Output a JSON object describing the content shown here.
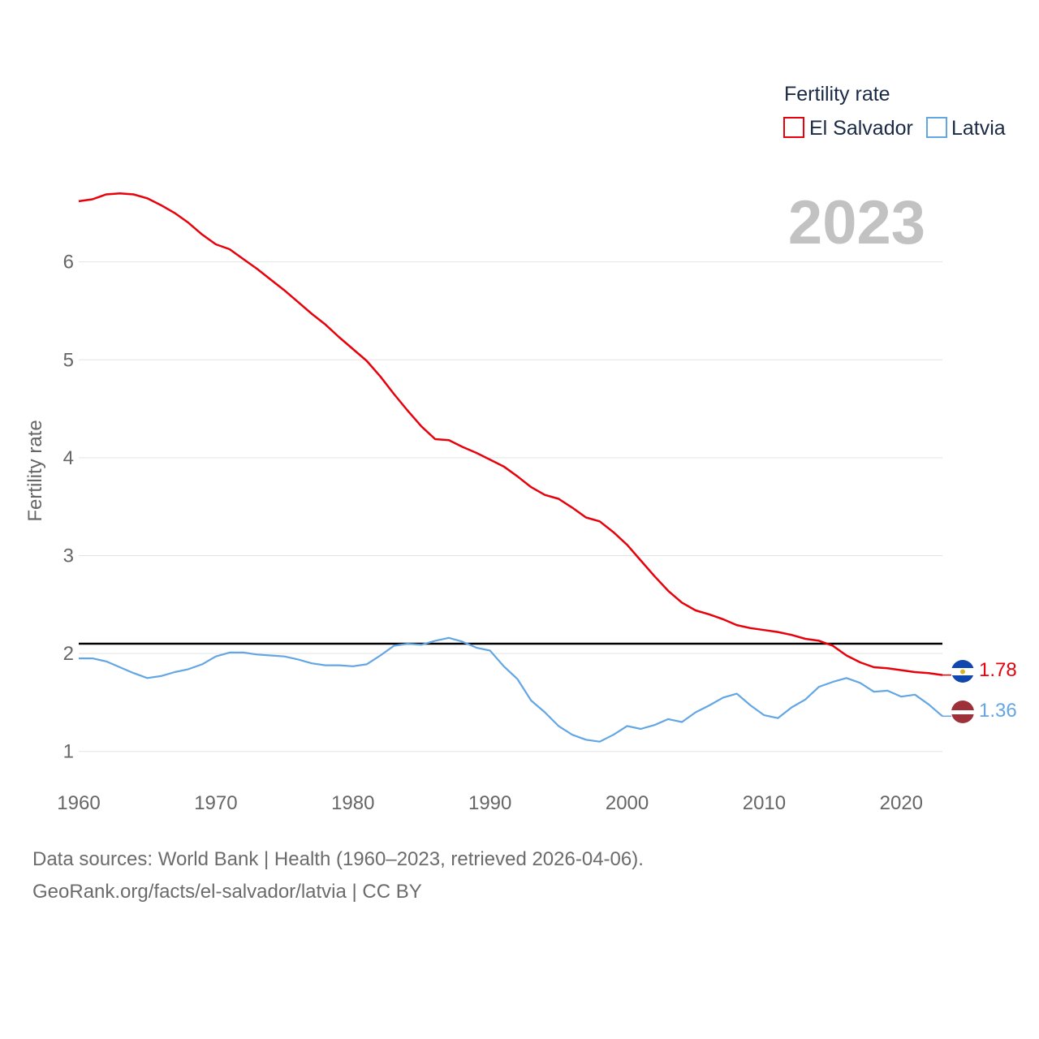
{
  "chart_data": {
    "type": "line",
    "title": "",
    "legend_title": "Fertility rate",
    "legend_position": "top-right",
    "ylabel": "Fertility rate",
    "xlabel": "",
    "year_label": "2023",
    "xlim": [
      1960,
      2023
    ],
    "ylim": [
      0.55,
      7.1
    ],
    "x_ticks": [
      1960,
      1970,
      1980,
      1990,
      2000,
      2010,
      2020
    ],
    "y_ticks": [
      1,
      2,
      3,
      4,
      5,
      6
    ],
    "reference_line": {
      "value": 2.1,
      "color": "#000000"
    },
    "x": [
      1960,
      1961,
      1962,
      1963,
      1964,
      1965,
      1966,
      1967,
      1968,
      1969,
      1970,
      1971,
      1972,
      1973,
      1974,
      1975,
      1976,
      1977,
      1978,
      1979,
      1980,
      1981,
      1982,
      1983,
      1984,
      1985,
      1986,
      1987,
      1988,
      1989,
      1990,
      1991,
      1992,
      1993,
      1994,
      1995,
      1996,
      1997,
      1998,
      1999,
      2000,
      2001,
      2002,
      2003,
      2004,
      2005,
      2006,
      2007,
      2008,
      2009,
      2010,
      2011,
      2012,
      2013,
      2014,
      2015,
      2016,
      2017,
      2018,
      2019,
      2020,
      2021,
      2022,
      2023
    ],
    "series": [
      {
        "name": "El Salvador",
        "color": "#e8000b",
        "end_label": "1.78",
        "values": [
          6.62,
          6.64,
          6.69,
          6.7,
          6.69,
          6.65,
          6.58,
          6.5,
          6.4,
          6.28,
          6.18,
          6.13,
          6.03,
          5.93,
          5.82,
          5.71,
          5.59,
          5.47,
          5.36,
          5.23,
          5.11,
          4.99,
          4.83,
          4.65,
          4.48,
          4.32,
          4.19,
          4.18,
          4.11,
          4.05,
          3.98,
          3.91,
          3.81,
          3.7,
          3.62,
          3.58,
          3.49,
          3.39,
          3.35,
          3.24,
          3.11,
          2.95,
          2.79,
          2.64,
          2.52,
          2.44,
          2.4,
          2.35,
          2.29,
          2.26,
          2.24,
          2.22,
          2.19,
          2.15,
          2.13,
          2.08,
          1.98,
          1.91,
          1.86,
          1.85,
          1.83,
          1.81,
          1.8,
          1.78
        ]
      },
      {
        "name": "Latvia",
        "color": "#63a6e3",
        "end_label": "1.36",
        "values": [
          1.95,
          1.95,
          1.92,
          1.86,
          1.8,
          1.75,
          1.77,
          1.81,
          1.84,
          1.89,
          1.97,
          2.01,
          2.01,
          1.99,
          1.98,
          1.97,
          1.94,
          1.9,
          1.88,
          1.88,
          1.87,
          1.89,
          1.98,
          2.08,
          2.1,
          2.09,
          2.13,
          2.16,
          2.12,
          2.06,
          2.03,
          1.87,
          1.74,
          1.52,
          1.4,
          1.26,
          1.17,
          1.12,
          1.1,
          1.17,
          1.26,
          1.23,
          1.27,
          1.33,
          1.3,
          1.4,
          1.47,
          1.55,
          1.59,
          1.47,
          1.37,
          1.34,
          1.45,
          1.53,
          1.66,
          1.71,
          1.75,
          1.7,
          1.61,
          1.62,
          1.56,
          1.58,
          1.48,
          1.36
        ]
      }
    ]
  },
  "footer": {
    "line1": "Data sources: World Bank | Health (1960–2023, retrieved 2026-04-06).",
    "line2": "GeoRank.org/facts/el-salvador/latvia | CC BY"
  },
  "flags": {
    "el_salvador": {
      "icon": "el-salvador-flag-icon",
      "colors": [
        "#0f47af",
        "#ffffff",
        "#0f47af"
      ],
      "emblem": "#d7b52a"
    },
    "latvia": {
      "icon": "latvia-flag-icon",
      "colors": [
        "#9e3039",
        "#ffffff",
        "#9e3039"
      ]
    }
  }
}
